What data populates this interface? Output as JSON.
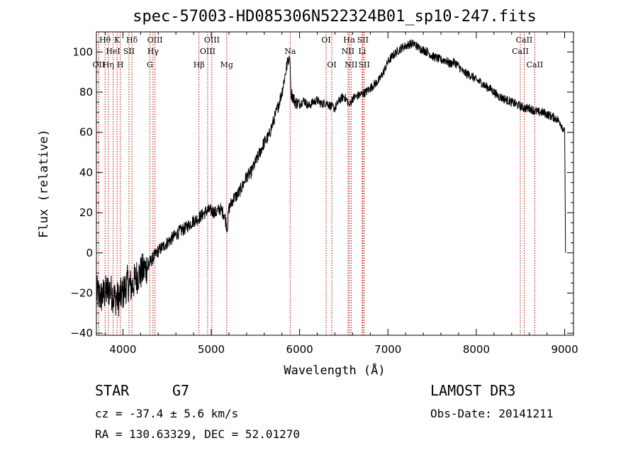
{
  "chart_data": {
    "type": "line",
    "title": "spec-57003-HD085306N522324B01_sp10-247.fits",
    "xlabel": "Wavelength (Å)",
    "ylabel": "Flux (relative)",
    "xlim": [
      3700,
      9100
    ],
    "ylim": [
      -41,
      110
    ],
    "xticks": [
      4000,
      5000,
      6000,
      7000,
      8000,
      9000
    ],
    "yticks": [
      -40,
      -20,
      0,
      20,
      40,
      60,
      80,
      100
    ],
    "series": [
      {
        "name": "flux",
        "x": [
          3700,
          3750,
          3800,
          3850,
          3900,
          3950,
          4000,
          4050,
          4100,
          4150,
          4200,
          4250,
          4300,
          4350,
          4400,
          4450,
          4500,
          4550,
          4600,
          4650,
          4700,
          4750,
          4800,
          4850,
          4900,
          4950,
          5000,
          5050,
          5100,
          5150,
          5180,
          5200,
          5250,
          5300,
          5350,
          5400,
          5450,
          5500,
          5550,
          5600,
          5650,
          5700,
          5750,
          5800,
          5850,
          5880,
          5893,
          5900,
          5950,
          6000,
          6050,
          6100,
          6150,
          6200,
          6250,
          6300,
          6350,
          6400,
          6450,
          6500,
          6550,
          6563,
          6600,
          6650,
          6700,
          6750,
          6800,
          6850,
          6900,
          6950,
          7000,
          7050,
          7100,
          7150,
          7200,
          7250,
          7300,
          7350,
          7400,
          7450,
          7500,
          7550,
          7600,
          7650,
          7700,
          7750,
          7800,
          7850,
          7900,
          7950,
          8000,
          8050,
          8100,
          8150,
          8200,
          8250,
          8300,
          8350,
          8400,
          8450,
          8500,
          8550,
          8600,
          8650,
          8700,
          8750,
          8800,
          8850,
          8900,
          8950,
          9000,
          9010
        ],
        "y": [
          -20,
          -22,
          -20,
          -18,
          -22,
          -23,
          -20,
          -15,
          -17,
          -12,
          -10,
          -8,
          -5,
          -2,
          1,
          3,
          5,
          7,
          9,
          11,
          12,
          14,
          16,
          17,
          19,
          21,
          21,
          20,
          22,
          19,
          12,
          22,
          27,
          29,
          33,
          38,
          40,
          45,
          50,
          55,
          58,
          65,
          72,
          80,
          92,
          98,
          95,
          80,
          75,
          74,
          76,
          73,
          75,
          76,
          74,
          75,
          73,
          72,
          76,
          78,
          75,
          73,
          77,
          78,
          79,
          80,
          82,
          84,
          86,
          90,
          95,
          98,
          100,
          102,
          103,
          104,
          104,
          102,
          101,
          100,
          98,
          97,
          96,
          96,
          94,
          95,
          93,
          90,
          89,
          88,
          86,
          85,
          83,
          82,
          80,
          78,
          77,
          76,
          75,
          74,
          73,
          72,
          72,
          71,
          70,
          70,
          69,
          68,
          67,
          65,
          60,
          0
        ]
      }
    ],
    "spectral_lines": [
      {
        "label": "Hθ",
        "x": 3798,
        "row": 0
      },
      {
        "label": "K",
        "x": 3934,
        "row": 0
      },
      {
        "label": "Hδ",
        "x": 4102,
        "row": 0
      },
      {
        "label": "OIII",
        "x": 4363,
        "row": 0
      },
      {
        "label": "HeI",
        "x": 3889,
        "row": 1
      },
      {
        "label": "SII",
        "x": 4069,
        "row": 1
      },
      {
        "label": "Hγ",
        "x": 4341,
        "row": 1
      },
      {
        "label": "OII",
        "x": 3727,
        "row": 2
      },
      {
        "label": "Hη",
        "x": 3835,
        "row": 2
      },
      {
        "label": "H",
        "x": 3970,
        "row": 2
      },
      {
        "label": "G",
        "x": 4305,
        "row": 2
      },
      {
        "label": "OIII",
        "x": 5007,
        "row": 0
      },
      {
        "label": "OIII",
        "x": 4959,
        "row": 1
      },
      {
        "label": "Hβ",
        "x": 4861,
        "row": 2
      },
      {
        "label": "Mg",
        "x": 5175,
        "row": 2
      },
      {
        "label": "Na",
        "x": 5893,
        "row": 1
      },
      {
        "label": "OI",
        "x": 6300,
        "row": 0
      },
      {
        "label": "OI",
        "x": 6364,
        "row": 2
      },
      {
        "label": "Hα",
        "x": 6563,
        "row": 0
      },
      {
        "label": "SII",
        "x": 6716,
        "row": 0
      },
      {
        "label": "NII",
        "x": 6548,
        "row": 1
      },
      {
        "label": "Li",
        "x": 6708,
        "row": 1
      },
      {
        "label": "NII",
        "x": 6583,
        "row": 2
      },
      {
        "label": "SII",
        "x": 6731,
        "row": 2
      },
      {
        "label": "CaII",
        "x": 8542,
        "row": 0
      },
      {
        "label": "CaII",
        "x": 8498,
        "row": 1
      },
      {
        "label": "CaII",
        "x": 8662,
        "row": 2
      }
    ]
  },
  "info": {
    "object_class": "STAR",
    "subclass": "G7",
    "survey": "LAMOST DR3",
    "velocity": "cz = -37.4 ± 5.6 km/s",
    "obs_date": "Obs-Date: 20141211",
    "coords": "RA = 130.63329, DEC =  52.01270"
  }
}
